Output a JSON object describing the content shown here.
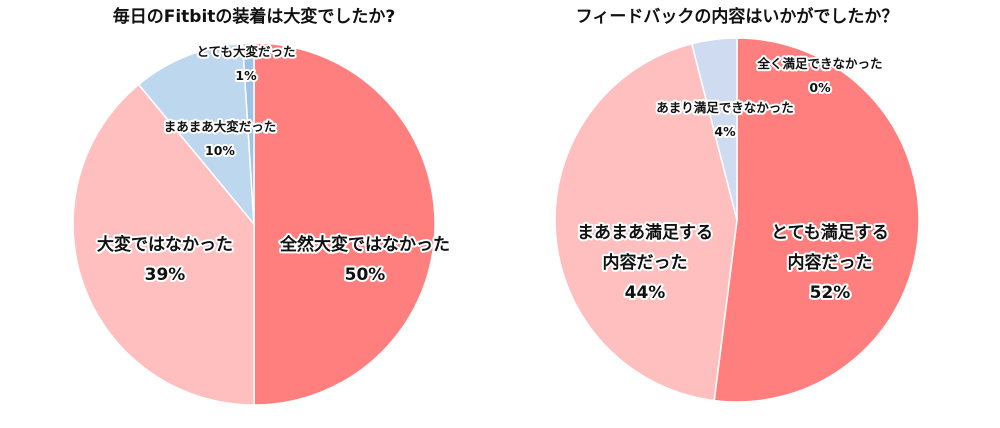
{
  "chart_data": [
    {
      "type": "pie",
      "title": "毎日のFitbitの装着は大変でしたか?",
      "slices": [
        {
          "label": "全然大変ではなかった",
          "value": 50,
          "value_label": "50%",
          "color": "#FF7F7F"
        },
        {
          "label": "大変ではなかった",
          "value": 39,
          "value_label": "39%",
          "color": "#FFBFBF"
        },
        {
          "label": "まあまあ大変だった",
          "value": 10,
          "value_label": "10%",
          "color": "#BDD7EE"
        },
        {
          "label": "とても大変だった",
          "value": 1,
          "value_label": "1%",
          "color": "#9DC3E6"
        }
      ],
      "start": "top",
      "direction": "clockwise"
    },
    {
      "type": "pie",
      "title": "フィードバックの内容はいかがでしたか？",
      "slices": [
        {
          "label": "とても満足する内容だった",
          "lines": [
            "とても満足する",
            "内容だった"
          ],
          "value": 52,
          "value_label": "52%",
          "color": "#FF7F7F"
        },
        {
          "label": "まあまあ満足する内容だった",
          "lines": [
            "まあまあ満足する",
            "内容だった"
          ],
          "value": 44,
          "value_label": "44%",
          "color": "#FFBFBF"
        },
        {
          "label": "あまり満足できなかった",
          "value": 4,
          "value_label": "4%",
          "color": "#CFDBF0"
        },
        {
          "label": "全く満足できなかった",
          "value": 0,
          "value_label": "0%",
          "color": "#BDD7EE"
        }
      ],
      "start": "top",
      "direction": "clockwise"
    }
  ]
}
